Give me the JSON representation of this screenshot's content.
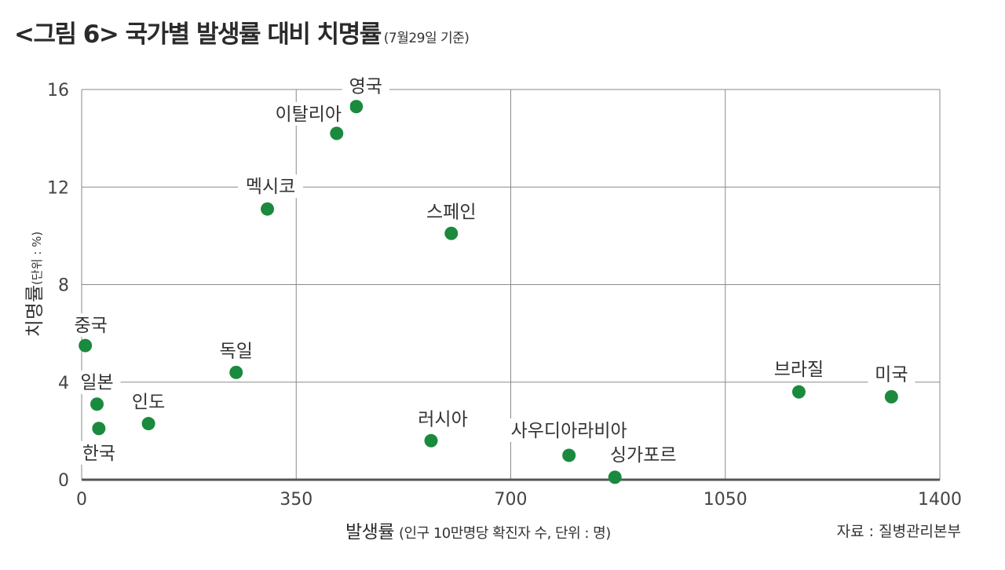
{
  "title": "<그림 6> 국가별 발생률 대비 치명률",
  "subtitle": "(7월29일 기준)",
  "source": "자료 : 질병관리본부",
  "colors": {
    "point": "#1a8a3e",
    "baseline": "#555555",
    "grid": "#8a8a8a"
  },
  "chart_data": {
    "type": "scatter",
    "xlabel": "발생률",
    "xlabel_unit": "(인구 10만명당 확진자 수, 단위 : 명)",
    "ylabel": "치명률",
    "ylabel_unit": "(단위 : %)",
    "xlim": [
      0,
      1400
    ],
    "ylim": [
      0,
      16
    ],
    "xticks": [
      "0",
      "350",
      "700",
      "1050",
      "1400"
    ],
    "yticks": [
      "0",
      "4",
      "8",
      "12",
      "16"
    ],
    "grid": true,
    "points": [
      {
        "label": "영국",
        "x": 448,
        "y": 15.3
      },
      {
        "label": "이탈리아",
        "x": 416,
        "y": 14.2
      },
      {
        "label": "멕시코",
        "x": 303,
        "y": 11.1
      },
      {
        "label": "스페인",
        "x": 603,
        "y": 10.1
      },
      {
        "label": "중국",
        "x": 6,
        "y": 5.5
      },
      {
        "label": "독일",
        "x": 252,
        "y": 4.4
      },
      {
        "label": "일본",
        "x": 25,
        "y": 3.1
      },
      {
        "label": "인도",
        "x": 109,
        "y": 2.3
      },
      {
        "label": "한국",
        "x": 28,
        "y": 2.1
      },
      {
        "label": "러시아",
        "x": 570,
        "y": 1.6
      },
      {
        "label": "사우디아라비아",
        "x": 795,
        "y": 1.0
      },
      {
        "label": "싱가포르",
        "x": 870,
        "y": 0.1
      },
      {
        "label": "브라질",
        "x": 1170,
        "y": 3.6
      },
      {
        "label": "미국",
        "x": 1321,
        "y": 3.4
      }
    ]
  }
}
